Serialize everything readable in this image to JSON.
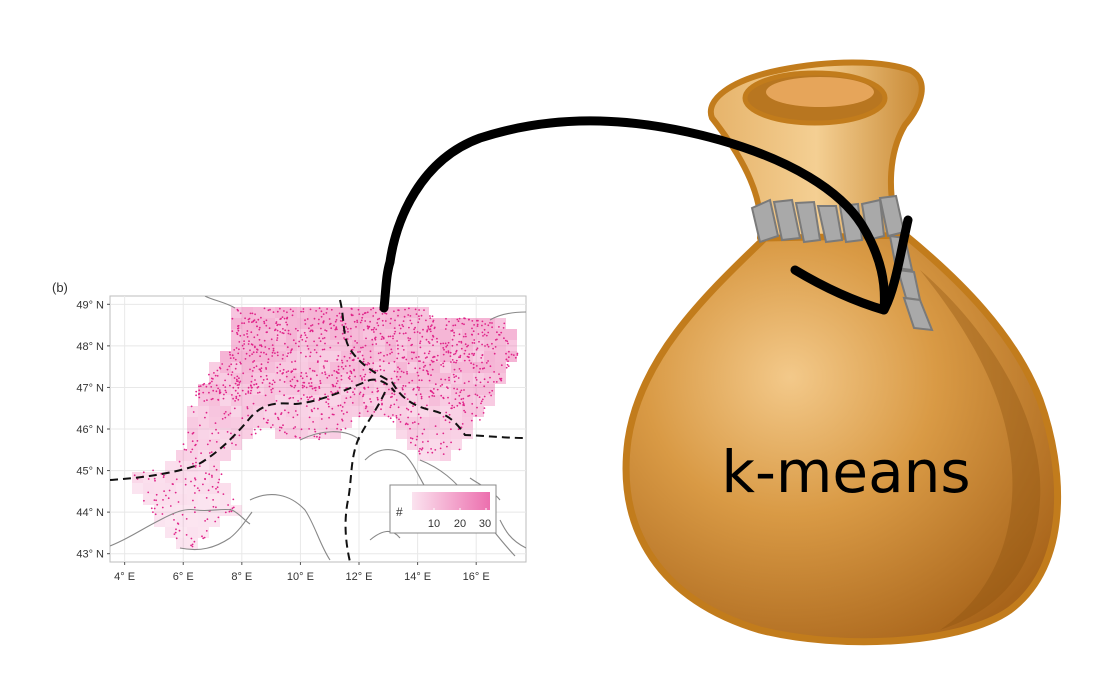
{
  "panel_label": "(b)",
  "map": {
    "lat_ticks": [
      "49° N",
      "48° N",
      "47° N",
      "46° N",
      "45° N",
      "44° N",
      "43° N"
    ],
    "lon_ticks": [
      "4° E",
      "6° E",
      "8° E",
      "10° E",
      "12° E",
      "14° E",
      "16° E"
    ],
    "lat_range": [
      43,
      49
    ],
    "lon_range": [
      3.5,
      17.7
    ],
    "legend": {
      "title": "#",
      "ticks": [
        "10",
        "20",
        "30"
      ],
      "color_low": "#fbe3ef",
      "color_high": "#ec6fae"
    },
    "point_color": "#e0258a"
  },
  "bag_label": "k-means",
  "colors": {
    "bag": "#c07a1f",
    "bag_outline": "#9a5a10",
    "arrow": "#000000",
    "cord": "#9c9c9c"
  }
}
